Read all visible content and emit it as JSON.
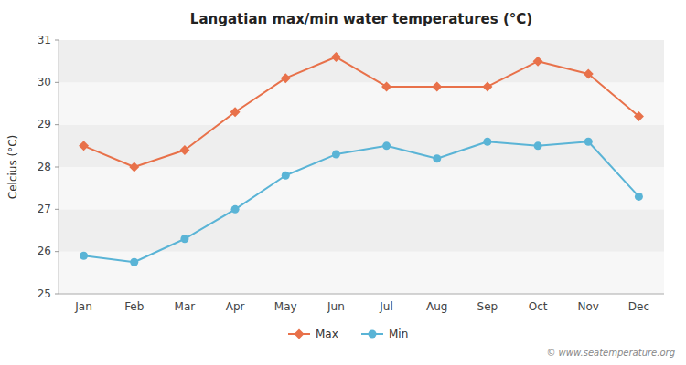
{
  "chart_data": {
    "type": "line",
    "title": "Langatian max/min water temperatures (°C)",
    "ylabel": "Celcius (°C)",
    "categories": [
      "Jan",
      "Feb",
      "Mar",
      "Apr",
      "May",
      "Jun",
      "Jul",
      "Aug",
      "Sep",
      "Oct",
      "Nov",
      "Dec"
    ],
    "series": [
      {
        "name": "Max",
        "color": "#e8714a",
        "marker": "diamond",
        "values": [
          28.5,
          28.0,
          28.4,
          29.3,
          30.1,
          30.6,
          29.9,
          29.9,
          29.9,
          30.5,
          30.2,
          29.2
        ]
      },
      {
        "name": "Min",
        "color": "#5ab4d6",
        "marker": "circle",
        "values": [
          25.9,
          25.75,
          26.3,
          27.0,
          27.8,
          28.3,
          28.5,
          28.2,
          28.6,
          28.5,
          28.6,
          27.3
        ]
      }
    ],
    "ylim": [
      25,
      31
    ],
    "yticks": [
      25,
      26,
      27,
      28,
      29,
      30,
      31
    ],
    "grid": false,
    "legend": "bottom",
    "annotations": [
      "© www.seatemperature.org"
    ]
  }
}
